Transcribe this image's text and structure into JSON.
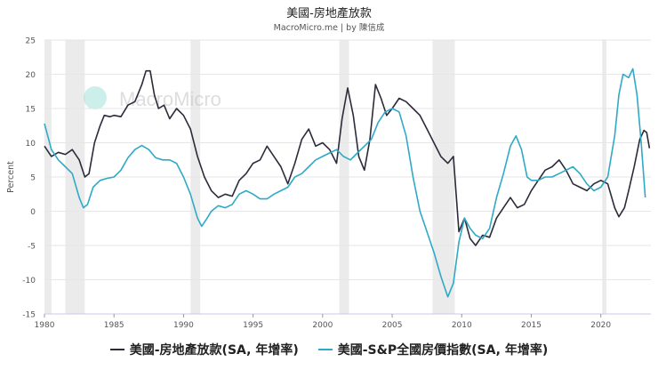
{
  "chart_data": {
    "type": "line",
    "title": "美國-房地產放款",
    "subtitle": "MacroMicro.me | by 陳信成",
    "watermark": "MacroMicro",
    "xlabel": "",
    "ylabel": "Percent",
    "xlim": [
      1980,
      2023.6
    ],
    "ylim": [
      -15,
      25
    ],
    "yticks": [
      -15,
      -10,
      -5,
      0,
      5,
      10,
      15,
      20,
      25
    ],
    "xticks": [
      1980,
      1985,
      1990,
      1995,
      2000,
      2005,
      2010,
      2015,
      2020
    ],
    "recessions": [
      [
        1980.0,
        1980.5
      ],
      [
        1981.5,
        1982.9
      ],
      [
        1990.5,
        1991.2
      ],
      [
        2001.2,
        2001.9
      ],
      [
        2007.9,
        2009.5
      ],
      [
        2020.1,
        2020.4
      ]
    ],
    "series": [
      {
        "name": "美國-房地產放款(SA, 年增率)",
        "color": "#2b2b3a",
        "points": [
          [
            1980.0,
            9.5
          ],
          [
            1980.5,
            8.0
          ],
          [
            1981.0,
            8.6
          ],
          [
            1981.5,
            8.3
          ],
          [
            1982.0,
            9.0
          ],
          [
            1982.5,
            7.5
          ],
          [
            1982.9,
            5.0
          ],
          [
            1983.2,
            5.5
          ],
          [
            1983.6,
            10.0
          ],
          [
            1984.0,
            12.5
          ],
          [
            1984.3,
            14.0
          ],
          [
            1984.7,
            13.8
          ],
          [
            1985.0,
            14.0
          ],
          [
            1985.5,
            13.8
          ],
          [
            1986.0,
            15.5
          ],
          [
            1986.5,
            16.0
          ],
          [
            1987.0,
            18.5
          ],
          [
            1987.3,
            20.5
          ],
          [
            1987.6,
            20.5
          ],
          [
            1987.9,
            17.0
          ],
          [
            1988.2,
            15.0
          ],
          [
            1988.6,
            15.5
          ],
          [
            1989.0,
            13.5
          ],
          [
            1989.5,
            15.0
          ],
          [
            1990.0,
            14.0
          ],
          [
            1990.5,
            12.0
          ],
          [
            1991.0,
            8.0
          ],
          [
            1991.5,
            5.0
          ],
          [
            1992.0,
            3.0
          ],
          [
            1992.5,
            2.0
          ],
          [
            1993.0,
            2.5
          ],
          [
            1993.5,
            2.2
          ],
          [
            1994.0,
            4.5
          ],
          [
            1994.5,
            5.5
          ],
          [
            1995.0,
            7.0
          ],
          [
            1995.5,
            7.5
          ],
          [
            1996.0,
            9.5
          ],
          [
            1996.5,
            8.0
          ],
          [
            1997.0,
            6.5
          ],
          [
            1997.5,
            4.0
          ],
          [
            1998.0,
            7.0
          ],
          [
            1998.5,
            10.5
          ],
          [
            1999.0,
            12.0
          ],
          [
            1999.5,
            9.5
          ],
          [
            2000.0,
            10.0
          ],
          [
            2000.5,
            9.0
          ],
          [
            2001.0,
            7.0
          ],
          [
            2001.4,
            13.5
          ],
          [
            2001.8,
            18.0
          ],
          [
            2002.2,
            14.0
          ],
          [
            2002.6,
            8.0
          ],
          [
            2003.0,
            6.0
          ],
          [
            2003.4,
            10.5
          ],
          [
            2003.8,
            18.5
          ],
          [
            2004.2,
            16.5
          ],
          [
            2004.6,
            14.0
          ],
          [
            2005.0,
            15.0
          ],
          [
            2005.5,
            16.5
          ],
          [
            2006.0,
            16.0
          ],
          [
            2006.5,
            15.0
          ],
          [
            2007.0,
            14.0
          ],
          [
            2007.5,
            12.0
          ],
          [
            2008.0,
            10.0
          ],
          [
            2008.5,
            8.0
          ],
          [
            2009.0,
            7.0
          ],
          [
            2009.4,
            8.0
          ],
          [
            2009.8,
            -3.0
          ],
          [
            2010.2,
            -1.0
          ],
          [
            2010.6,
            -4.0
          ],
          [
            2011.0,
            -5.0
          ],
          [
            2011.5,
            -3.5
          ],
          [
            2012.0,
            -3.8
          ],
          [
            2012.5,
            -1.0
          ],
          [
            2013.0,
            0.5
          ],
          [
            2013.5,
            2.0
          ],
          [
            2014.0,
            0.5
          ],
          [
            2014.5,
            1.0
          ],
          [
            2015.0,
            3.0
          ],
          [
            2015.5,
            4.5
          ],
          [
            2016.0,
            6.0
          ],
          [
            2016.5,
            6.5
          ],
          [
            2017.0,
            7.5
          ],
          [
            2017.5,
            6.0
          ],
          [
            2018.0,
            4.0
          ],
          [
            2018.5,
            3.5
          ],
          [
            2019.0,
            3.0
          ],
          [
            2019.5,
            4.0
          ],
          [
            2020.0,
            4.5
          ],
          [
            2020.5,
            4.0
          ],
          [
            2021.0,
            0.5
          ],
          [
            2021.3,
            -0.8
          ],
          [
            2021.7,
            0.5
          ],
          [
            2022.0,
            3.0
          ],
          [
            2022.4,
            6.5
          ],
          [
            2022.8,
            10.5
          ],
          [
            2023.1,
            11.8
          ],
          [
            2023.3,
            11.5
          ],
          [
            2023.5,
            9.2
          ]
        ]
      },
      {
        "name": "美國-S&P全國房價指數(SA, 年增率)",
        "color": "#2fa9c6",
        "points": [
          [
            1980.0,
            12.8
          ],
          [
            1980.5,
            9.0
          ],
          [
            1981.0,
            7.5
          ],
          [
            1981.5,
            6.5
          ],
          [
            1982.0,
            5.5
          ],
          [
            1982.5,
            2.0
          ],
          [
            1982.8,
            0.5
          ],
          [
            1983.1,
            1.0
          ],
          [
            1983.5,
            3.5
          ],
          [
            1984.0,
            4.5
          ],
          [
            1984.5,
            4.8
          ],
          [
            1985.0,
            5.0
          ],
          [
            1985.5,
            6.0
          ],
          [
            1986.0,
            7.8
          ],
          [
            1986.5,
            9.0
          ],
          [
            1987.0,
            9.6
          ],
          [
            1987.5,
            9.0
          ],
          [
            1988.0,
            7.8
          ],
          [
            1988.5,
            7.5
          ],
          [
            1989.0,
            7.5
          ],
          [
            1989.5,
            7.0
          ],
          [
            1990.0,
            5.0
          ],
          [
            1990.5,
            2.5
          ],
          [
            1991.0,
            -1.0
          ],
          [
            1991.3,
            -2.2
          ],
          [
            1991.7,
            -1.0
          ],
          [
            1992.0,
            0.0
          ],
          [
            1992.5,
            0.8
          ],
          [
            1993.0,
            0.5
          ],
          [
            1993.5,
            1.0
          ],
          [
            1994.0,
            2.5
          ],
          [
            1994.5,
            3.0
          ],
          [
            1995.0,
            2.5
          ],
          [
            1995.5,
            1.8
          ],
          [
            1996.0,
            1.8
          ],
          [
            1996.5,
            2.5
          ],
          [
            1997.0,
            3.0
          ],
          [
            1997.5,
            3.5
          ],
          [
            1998.0,
            5.0
          ],
          [
            1998.5,
            5.5
          ],
          [
            1999.0,
            6.5
          ],
          [
            1999.5,
            7.5
          ],
          [
            2000.0,
            8.0
          ],
          [
            2000.5,
            8.5
          ],
          [
            2001.0,
            9.0
          ],
          [
            2001.5,
            8.0
          ],
          [
            2002.0,
            7.5
          ],
          [
            2002.5,
            8.5
          ],
          [
            2003.0,
            9.5
          ],
          [
            2003.5,
            10.5
          ],
          [
            2004.0,
            13.0
          ],
          [
            2004.5,
            14.5
          ],
          [
            2005.0,
            15.0
          ],
          [
            2005.5,
            14.5
          ],
          [
            2006.0,
            11.0
          ],
          [
            2006.5,
            5.0
          ],
          [
            2007.0,
            0.0
          ],
          [
            2007.5,
            -3.0
          ],
          [
            2008.0,
            -6.0
          ],
          [
            2008.5,
            -9.5
          ],
          [
            2009.0,
            -12.5
          ],
          [
            2009.4,
            -10.5
          ],
          [
            2009.8,
            -4.5
          ],
          [
            2010.2,
            -1.0
          ],
          [
            2010.6,
            -2.5
          ],
          [
            2011.0,
            -3.5
          ],
          [
            2011.5,
            -4.0
          ],
          [
            2012.0,
            -2.5
          ],
          [
            2012.5,
            2.0
          ],
          [
            2013.0,
            5.5
          ],
          [
            2013.5,
            9.5
          ],
          [
            2013.9,
            11.0
          ],
          [
            2014.3,
            9.0
          ],
          [
            2014.7,
            5.0
          ],
          [
            2015.0,
            4.5
          ],
          [
            2015.5,
            4.5
          ],
          [
            2016.0,
            5.0
          ],
          [
            2016.5,
            5.0
          ],
          [
            2017.0,
            5.5
          ],
          [
            2017.5,
            6.0
          ],
          [
            2018.0,
            6.5
          ],
          [
            2018.5,
            5.5
          ],
          [
            2019.0,
            4.0
          ],
          [
            2019.5,
            3.0
          ],
          [
            2020.0,
            3.5
          ],
          [
            2020.5,
            5.0
          ],
          [
            2021.0,
            11.0
          ],
          [
            2021.3,
            17.0
          ],
          [
            2021.6,
            20.0
          ],
          [
            2022.0,
            19.5
          ],
          [
            2022.3,
            20.8
          ],
          [
            2022.6,
            17.0
          ],
          [
            2022.9,
            10.0
          ],
          [
            2023.2,
            2.0
          ]
        ]
      }
    ]
  }
}
